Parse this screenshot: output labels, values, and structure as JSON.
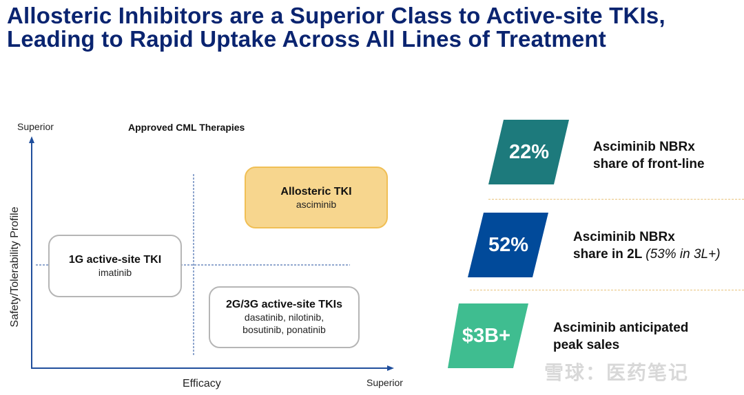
{
  "title_line1": "Allosteric Inhibitors are a Superior Class to Active-site TKIs,",
  "title_line2": "Leading to Rapid Uptake Across All Lines of Treatment",
  "diagram": {
    "title": "Approved CML Therapies",
    "y_axis_label": "Safety/Tolerability Profile",
    "y_axis_top": "Superior",
    "x_axis_label": "Efficacy",
    "x_axis_right": "Superior",
    "boxes": [
      {
        "heading": "Allosteric TKI",
        "sub": "asciminib"
      },
      {
        "heading": "1G active-site TKI",
        "sub": "imatinib"
      },
      {
        "heading": "2G/3G active-site TKIs",
        "sub1": "dasatinib, nilotinib,",
        "sub2": "bosutinib, ponatinib"
      }
    ]
  },
  "stats": [
    {
      "value": "22%",
      "line1": "Asciminib NBRx",
      "line2": "share of front-line",
      "color": "#1d7a7c"
    },
    {
      "value": "52%",
      "line1": "Asciminib NBRx",
      "line2": "share in 2L",
      "note": "(53% in 3L+)",
      "color": "#014a9a"
    },
    {
      "value": "$3B+",
      "line1": "Asciminib anticipated",
      "line2": "peak sales",
      "color": "#3fbd90"
    }
  ],
  "watermark": "雪球：医药笔记"
}
